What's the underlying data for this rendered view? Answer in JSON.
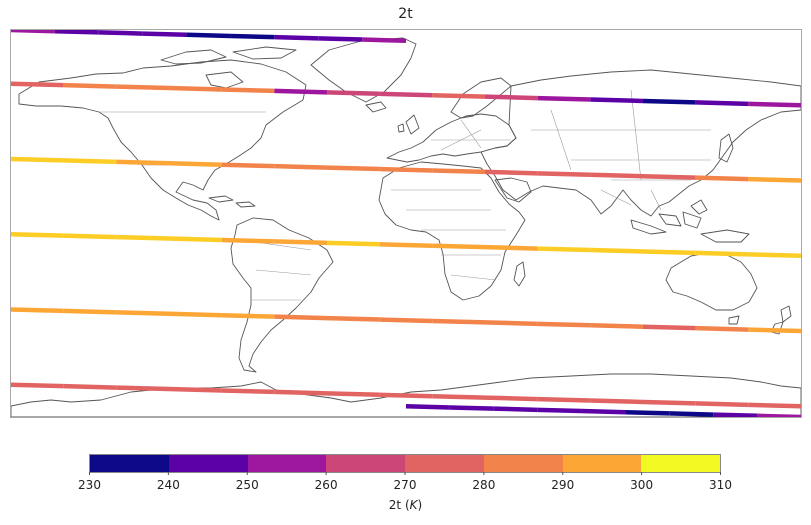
{
  "map": {
    "title": "2t",
    "projection": "plate carree",
    "extent": {
      "lon": [
        -180,
        180
      ],
      "lat": [
        -90,
        90
      ]
    },
    "coastlines": true,
    "borders": true
  },
  "colorbar": {
    "label_var": "2t",
    "label_unit": "K",
    "colormap": "plasma",
    "range": [
      230,
      310
    ],
    "ticks": [
      "230",
      "240",
      "250",
      "260",
      "270",
      "280",
      "290",
      "300",
      "310"
    ],
    "colors": [
      "#0d0887",
      "#5c01a6",
      "#9c179e",
      "#cc4778",
      "#e16462",
      "#f2844b",
      "#fca636",
      "#fccd25",
      "#f0f921"
    ],
    "placement": "bottom"
  },
  "chart_data": {
    "type": "scatter",
    "title": "2t",
    "value_label": "2t (K)",
    "tracks": [
      {
        "lon": [
          -180,
          0
        ],
        "lat": [
          85,
          90
        ],
        "values": [
          250,
          248,
          245,
          240,
          238,
          235,
          240,
          246,
          250
        ]
      },
      {
        "lon": [
          -180,
          180
        ],
        "lat": [
          55,
          65
        ],
        "values": [
          278,
          282,
          285,
          286,
          280,
          258,
          262,
          268,
          272,
          265,
          250,
          240,
          236,
          245,
          250
        ]
      },
      {
        "lon": [
          -180,
          180
        ],
        "lat": [
          20,
          30
        ],
        "values": [
          303,
          300,
          295,
          290,
          287,
          284,
          283,
          282,
          281,
          279,
          275,
          272,
          278,
          285,
          290
        ]
      },
      {
        "lon": [
          -180,
          180
        ],
        "lat": [
          -15,
          -5
        ],
        "values": [
          308,
          305,
          302,
          300,
          299,
          298,
          300,
          299,
          298,
          298,
          300,
          303,
          305,
          306,
          307
        ]
      },
      {
        "lon": [
          -180,
          180
        ],
        "lat": [
          -50,
          -40
        ],
        "values": [
          295,
          294,
          293,
          292,
          290,
          289,
          288,
          287,
          286,
          284,
          283,
          280,
          278,
          282,
          290
        ]
      },
      {
        "lon": [
          -180,
          180
        ],
        "lat": [
          -85,
          -75
        ],
        "values": [
          274,
          273,
          272,
          271,
          270,
          270,
          271,
          272,
          271,
          270,
          272,
          270,
          270,
          271,
          272
        ]
      },
      {
        "lon": [
          0,
          180
        ],
        "lat": [
          -90,
          -85
        ],
        "values": [
          248,
          248,
          246,
          244,
          241,
          238,
          236,
          242,
          250
        ]
      }
    ]
  }
}
